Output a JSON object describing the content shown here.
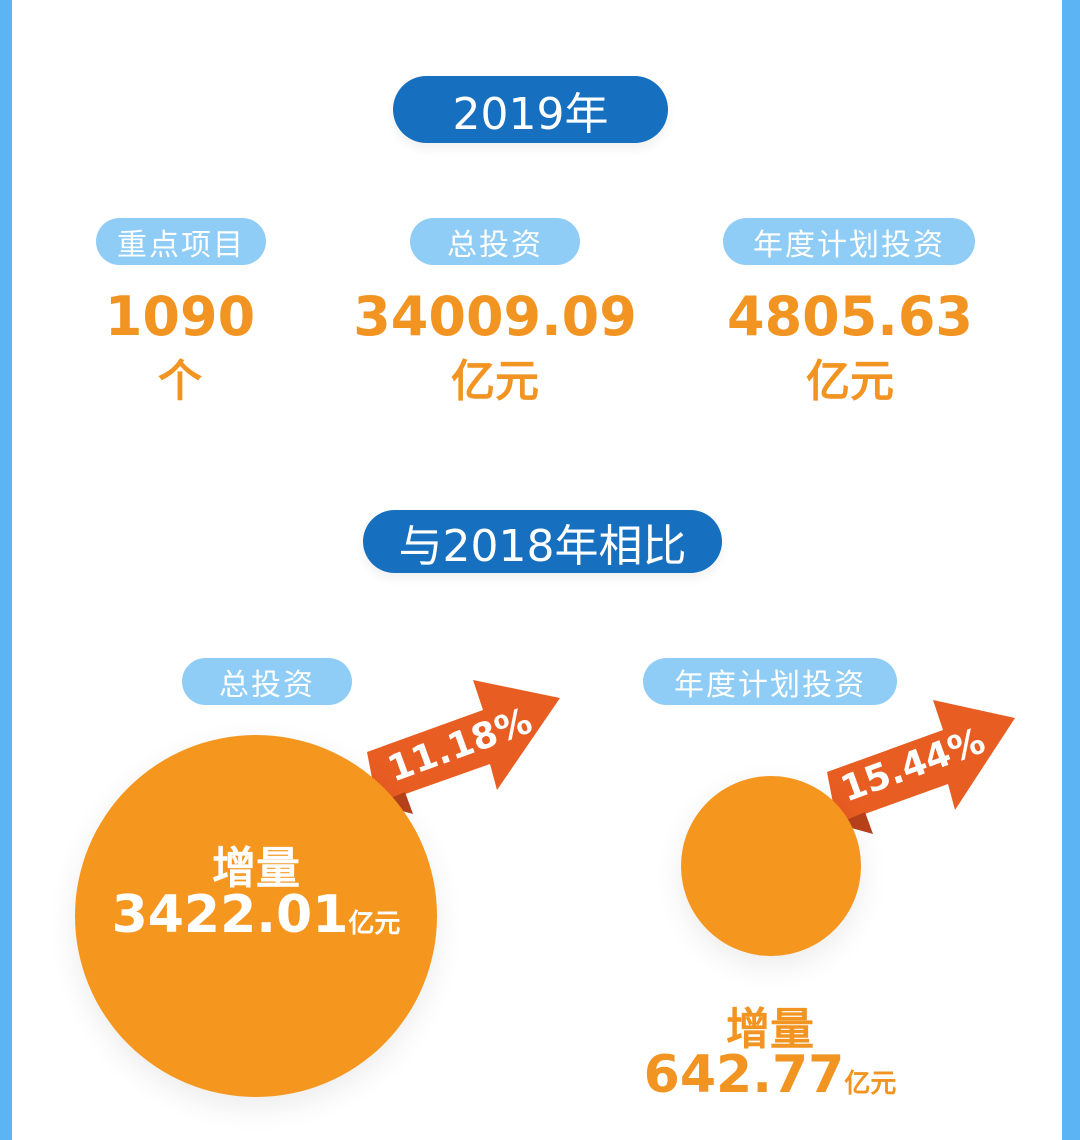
{
  "year_title": "2019年",
  "stats": [
    {
      "label": "重点项目",
      "value": "1090",
      "unit": "个"
    },
    {
      "label": "总投资",
      "value": "34009.09",
      "unit": "亿元"
    },
    {
      "label": "年度计划投资",
      "value": "4805.63",
      "unit": "亿元"
    }
  ],
  "compare_title": "与2018年相比",
  "comparisons": [
    {
      "label": "总投资",
      "growth": "11.18%",
      "increase_label": "增量",
      "increase_value": "3422.01",
      "unit": "亿元"
    },
    {
      "label": "年度计划投资",
      "growth": "15.44%",
      "increase_label": "增量",
      "increase_value": "642.77",
      "unit": "亿元"
    }
  ],
  "colors": {
    "dark_blue": "#1670bf",
    "light_blue": "#8fcdf6",
    "orange": "#f29422",
    "arrow": "#e85d22",
    "border": "#5db4f5"
  }
}
